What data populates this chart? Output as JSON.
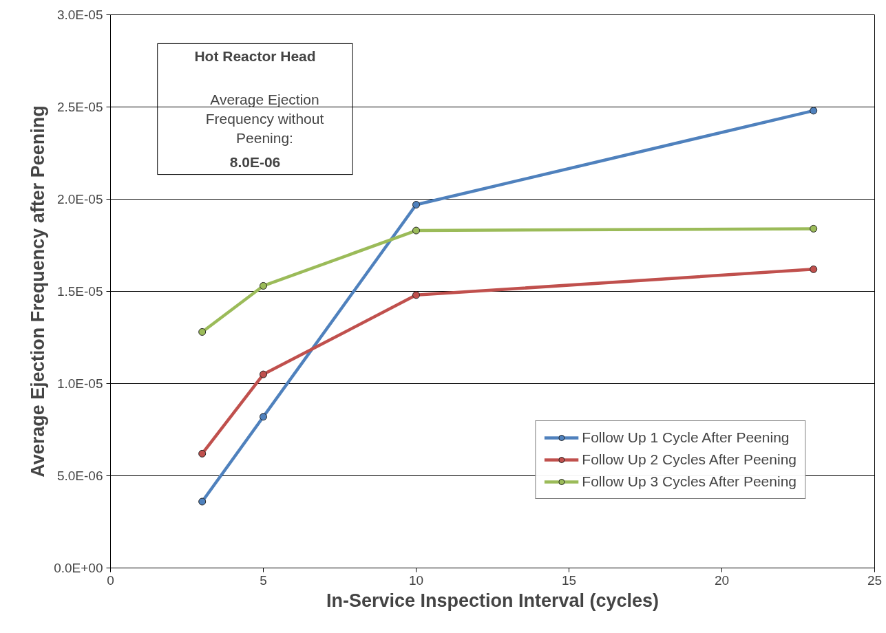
{
  "chart_data": {
    "type": "line",
    "xlabel": "In-Service Inspection Interval (cycles)",
    "ylabel": "Average Ejection Frequency after Peening",
    "annotations": [
      "Hot Reactor Head",
      "Average Ejection\nFrequency without\nPeening:",
      "8.0E-06"
    ],
    "x": [
      3,
      5,
      10,
      23
    ],
    "series": [
      {
        "name": "Follow Up 1 Cycle After Peening",
        "color": "#4f81bd",
        "values": [
          3.6e-06,
          8.2e-06,
          1.97e-05,
          2.48e-05
        ]
      },
      {
        "name": "Follow Up 2 Cycles After Peening",
        "color": "#c0504d",
        "values": [
          6.2e-06,
          1.05e-05,
          1.48e-05,
          1.62e-05
        ]
      },
      {
        "name": "Follow Up 3 Cycles After Peening",
        "color": "#9bbb59",
        "values": [
          1.28e-05,
          1.53e-05,
          1.83e-05,
          1.84e-05
        ]
      }
    ],
    "xlim": [
      0,
      25
    ],
    "xticks": [
      0,
      5,
      10,
      15,
      20,
      25
    ],
    "ylim": [
      0,
      3e-05
    ],
    "yticks": [
      {
        "value": 0,
        "label": "0.0E+00"
      },
      {
        "value": 5e-06,
        "label": "5.0E-06"
      },
      {
        "value": 1e-05,
        "label": "1.0E-05"
      },
      {
        "value": 1.5e-05,
        "label": "1.5E-05"
      },
      {
        "value": 2e-05,
        "label": "2.0E-05"
      },
      {
        "value": 2.5e-05,
        "label": "2.5E-05"
      },
      {
        "value": 3e-05,
        "label": "3.0E-05"
      }
    ],
    "grid": "y",
    "legend": "bottom right",
    "marker": "circle",
    "line_style": "solid"
  }
}
